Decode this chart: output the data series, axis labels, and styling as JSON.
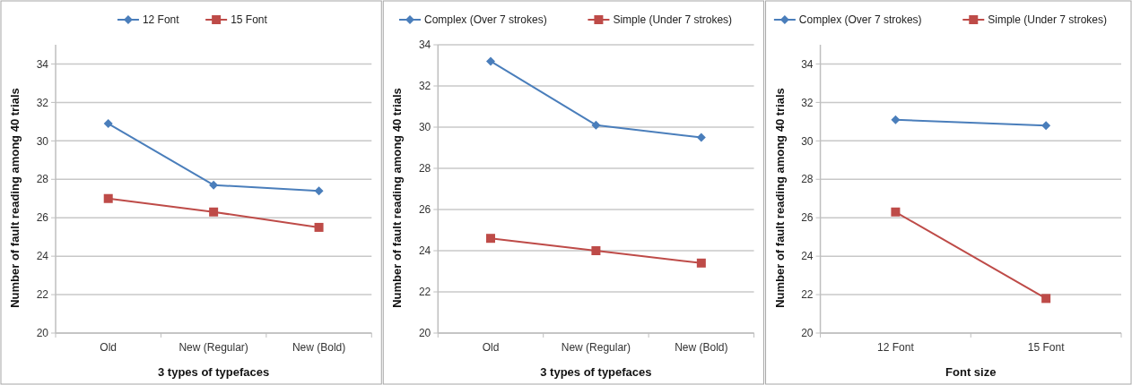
{
  "chart_data": [
    {
      "type": "line",
      "xlabel": "3 types of typefaces",
      "ylabel": "Number of fault reading among 40 trials",
      "categories": [
        "Old",
        "New (Regular)",
        "New (Bold)"
      ],
      "ylim": [
        20,
        35
      ],
      "yticks": [
        20,
        22,
        24,
        26,
        28,
        30,
        32,
        34
      ],
      "grid": "y",
      "legend": "top",
      "series": [
        {
          "name": "12 Font",
          "color": "#4a7ebb",
          "marker": "diamond",
          "values": [
            30.9,
            27.7,
            27.4
          ]
        },
        {
          "name": "15 Font",
          "color": "#be4b48",
          "marker": "square",
          "values": [
            27.0,
            26.3,
            25.5
          ]
        }
      ]
    },
    {
      "type": "line",
      "xlabel": "3 types of typefaces",
      "ylabel": "Number of fault reading among 40 trials",
      "categories": [
        "Old",
        "New (Regular)",
        "New (Bold)"
      ],
      "ylim": [
        20,
        34
      ],
      "yticks": [
        20,
        22,
        24,
        26,
        28,
        30,
        32,
        34
      ],
      "grid": "y",
      "legend": "top",
      "series": [
        {
          "name": "Complex (Over 7 strokes)",
          "color": "#4a7ebb",
          "marker": "diamond",
          "values": [
            33.2,
            30.1,
            29.5
          ]
        },
        {
          "name": "Simple (Under 7 strokes)",
          "color": "#be4b48",
          "marker": "square",
          "values": [
            24.6,
            24.0,
            23.4
          ]
        }
      ]
    },
    {
      "type": "line",
      "xlabel": "Font size",
      "ylabel": "Number of fault reading among 40 trials",
      "categories": [
        "12 Font",
        "15 Font"
      ],
      "ylim": [
        20,
        35
      ],
      "yticks": [
        20,
        22,
        24,
        26,
        28,
        30,
        32,
        34
      ],
      "grid": "y",
      "legend": "top",
      "series": [
        {
          "name": "Complex (Over 7 strokes)",
          "color": "#4a7ebb",
          "marker": "diamond",
          "values": [
            31.1,
            30.8
          ]
        },
        {
          "name": "Simple (Under 7 strokes)",
          "color": "#be4b48",
          "marker": "square",
          "values": [
            26.3,
            21.8
          ]
        }
      ]
    }
  ]
}
